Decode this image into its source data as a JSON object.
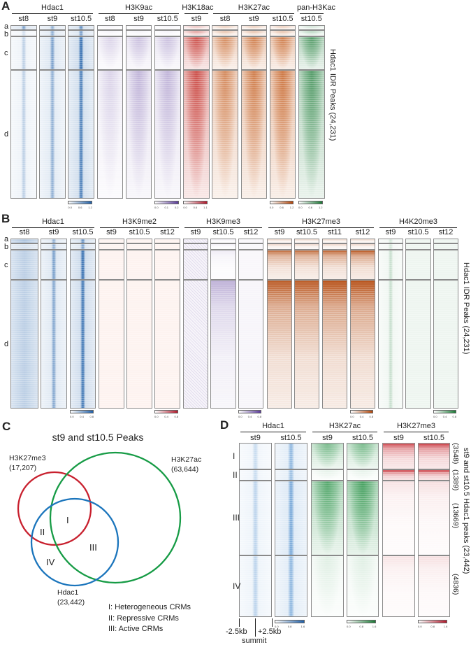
{
  "panelA": {
    "label": "A",
    "groups": [
      "Hdac1",
      "H3K9ac",
      "H3K18ac",
      "H3K27ac",
      "pan-H3Kac"
    ],
    "sections": [
      "a",
      "b",
      "c",
      "d"
    ],
    "side_label": "Hdac1 IDR Peaks (24,231)",
    "tracks": [
      {
        "group": 0,
        "stage": "st8",
        "color": "#1f5fa8",
        "signal": [
          0.6,
          0.2,
          0.3,
          0.3
        ],
        "pattern": "center"
      },
      {
        "group": 0,
        "stage": "st9",
        "color": "#1f5fa8",
        "signal": [
          0.5,
          0.5,
          0.6,
          0.5
        ],
        "pattern": "center"
      },
      {
        "group": 0,
        "stage": "st10.5",
        "color": "#1f5fa8",
        "signal": [
          0.7,
          0.6,
          0.9,
          0.8
        ],
        "pattern": "center"
      },
      {
        "group": 1,
        "stage": "st8",
        "color": "#5a3a9a",
        "signal": [
          0.05,
          0.05,
          0.2,
          0.2
        ],
        "pattern": "cone"
      },
      {
        "group": 1,
        "stage": "st9",
        "color": "#5a3a9a",
        "signal": [
          0.05,
          0.05,
          0.3,
          0.35
        ],
        "pattern": "cone"
      },
      {
        "group": 1,
        "stage": "st10.5",
        "color": "#5a3a9a",
        "signal": [
          0.05,
          0.05,
          0.3,
          0.35
        ],
        "pattern": "cone"
      },
      {
        "group": 2,
        "stage": "st9",
        "color": "#c0261f",
        "signal": [
          0.3,
          0.45,
          0.9,
          0.9
        ],
        "pattern": "cone"
      },
      {
        "group": 3,
        "stage": "st8",
        "color": "#c0520f",
        "signal": [
          0.3,
          0.35,
          0.7,
          0.7
        ],
        "pattern": "cone"
      },
      {
        "group": 3,
        "stage": "st9",
        "color": "#c0520f",
        "signal": [
          0.3,
          0.35,
          0.8,
          0.8
        ],
        "pattern": "cone"
      },
      {
        "group": 3,
        "stage": "st10.5",
        "color": "#c0520f",
        "signal": [
          0.3,
          0.35,
          0.8,
          0.85
        ],
        "pattern": "cone"
      },
      {
        "group": 4,
        "stage": "st10.5",
        "color": "#1a7a35",
        "signal": [
          0.2,
          0.3,
          0.8,
          0.8
        ],
        "pattern": "cone"
      }
    ],
    "colorbars": [
      {
        "track": 2,
        "color": "#1f5fa8",
        "ticks": [
          "0.0",
          "0.6",
          "1.2"
        ]
      },
      {
        "track": 5,
        "color": "#5a3a9a",
        "ticks": [
          "0.0",
          "0.1",
          "0.2"
        ]
      },
      {
        "track": 6,
        "color": "#b2182b",
        "ticks": [
          "0.0",
          "0.6",
          "1.1"
        ]
      },
      {
        "track": 9,
        "color": "#b2460a",
        "ticks": [
          "0.0",
          "0.6",
          "1.2"
        ]
      },
      {
        "track": 10,
        "color": "#1a7a35",
        "ticks": [
          "0.0",
          "0.6",
          "1.2"
        ]
      }
    ]
  },
  "panelB": {
    "label": "B",
    "groups": [
      "Hdac1",
      "H3K9me2",
      "H3K9me3",
      "H3K27me3",
      "H4K20me3"
    ],
    "sections": [
      "a",
      "b",
      "c",
      "d"
    ],
    "side_label": "Hdac1 IDR Peaks (24,231)",
    "tracks": [
      {
        "group": 0,
        "stage": "st8",
        "color": "#1f5fa8",
        "signal": [
          0.6,
          0.3,
          0.5,
          0.5
        ],
        "pattern": "broad"
      },
      {
        "group": 0,
        "stage": "st9",
        "color": "#1f5fa8",
        "signal": [
          0.5,
          0.5,
          0.6,
          0.55
        ],
        "pattern": "center"
      },
      {
        "group": 0,
        "stage": "st10.5",
        "color": "#1f5fa8",
        "signal": [
          0.7,
          0.6,
          0.9,
          0.85
        ],
        "pattern": "center"
      },
      {
        "group": 1,
        "stage": "st9",
        "color": "#e0603a",
        "signal": [
          0.15,
          0.15,
          0.15,
          0.15
        ],
        "pattern": "flat"
      },
      {
        "group": 1,
        "stage": "st10.5",
        "color": "#e0603a",
        "signal": [
          0.15,
          0.15,
          0.15,
          0.15
        ],
        "pattern": "flat"
      },
      {
        "group": 1,
        "stage": "st12",
        "color": "#e0603a",
        "signal": [
          0.15,
          0.15,
          0.15,
          0.15
        ],
        "pattern": "flat"
      },
      {
        "group": 2,
        "stage": "st9",
        "color": "#5a3a9a",
        "signal": [
          0.25,
          0.25,
          0.25,
          0.25
        ],
        "pattern": "noise"
      },
      {
        "group": 2,
        "stage": "st10.5",
        "color": "#5a3a9a",
        "signal": [
          0.1,
          0.1,
          0.1,
          0.4
        ],
        "pattern": "top"
      },
      {
        "group": 2,
        "stage": "st12",
        "color": "#5a3a9a",
        "signal": [
          0.08,
          0.08,
          0.08,
          0.1
        ],
        "pattern": "flat"
      },
      {
        "group": 3,
        "stage": "st9",
        "color": "#b2460a",
        "signal": [
          0.3,
          0.3,
          0.8,
          0.9
        ],
        "pattern": "top"
      },
      {
        "group": 3,
        "stage": "st10.5",
        "color": "#b2460a",
        "signal": [
          0.3,
          0.3,
          0.8,
          0.9
        ],
        "pattern": "top"
      },
      {
        "group": 3,
        "stage": "st11",
        "color": "#b2460a",
        "signal": [
          0.3,
          0.3,
          0.85,
          0.95
        ],
        "pattern": "top"
      },
      {
        "group": 3,
        "stage": "st12",
        "color": "#b2460a",
        "signal": [
          0.3,
          0.3,
          0.9,
          0.95
        ],
        "pattern": "top"
      },
      {
        "group": 4,
        "stage": "st9",
        "color": "#1a7a35",
        "signal": [
          0.2,
          0.2,
          0.25,
          0.25
        ],
        "pattern": "center"
      },
      {
        "group": 4,
        "stage": "st10.5",
        "color": "#1a7a35",
        "signal": [
          0.15,
          0.15,
          0.15,
          0.15
        ],
        "pattern": "flat"
      },
      {
        "group": 4,
        "stage": "st12",
        "color": "#1a7a35",
        "signal": [
          0.15,
          0.15,
          0.15,
          0.15
        ],
        "pattern": "flat"
      }
    ],
    "colorbars": [
      {
        "track": 2,
        "color": "#1f5fa8",
        "ticks": [
          "0.0",
          "0.4",
          "0.8"
        ]
      },
      {
        "track": 5,
        "color": "#b2182b",
        "ticks": [
          "0.0",
          "0.4",
          "0.8"
        ]
      },
      {
        "track": 8,
        "color": "#5a3a9a",
        "ticks": [
          "0.0",
          "0.4",
          "0.8"
        ]
      },
      {
        "track": 12,
        "color": "#b2460a",
        "ticks": [
          "0.0",
          "0.4",
          "0.8"
        ]
      },
      {
        "track": 15,
        "color": "#1a7a35",
        "ticks": [
          "0.0",
          "0.4",
          "0.8"
        ]
      }
    ]
  },
  "panelC": {
    "label": "C",
    "title": "st9 and st10.5 Peaks",
    "sets": [
      {
        "name": "H3K27me3",
        "count": "(17,207)",
        "color": "#c8202e"
      },
      {
        "name": "H3K27ac",
        "count": "(63,644)",
        "color": "#169b45"
      },
      {
        "name": "Hdac1",
        "count": "(23,442)",
        "color": "#1b75bc"
      }
    ],
    "regions": [
      "I",
      "II",
      "III",
      "IV"
    ],
    "legend": [
      "I: Heterogeneous CRMs",
      "II: Repressive CRMs",
      "III: Active CRMs"
    ]
  },
  "panelD": {
    "label": "D",
    "groups": [
      "Hdac1",
      "H3K27ac",
      "H3K27me3"
    ],
    "sections": [
      "I",
      "II",
      "III",
      "IV"
    ],
    "counts": [
      "(3548)",
      "(1389)",
      "(13669)",
      "(4836)"
    ],
    "side_label": "st9 and st10.5 Hdac1 peaks (23,442)",
    "tracks": [
      {
        "group": 0,
        "stage": "st9",
        "color": "#1f6fbf",
        "signal": [
          0.25,
          0.25,
          0.3,
          0.3
        ],
        "pattern": "center"
      },
      {
        "group": 0,
        "stage": "st10.5",
        "color": "#1f6fbf",
        "signal": [
          0.5,
          0.45,
          0.6,
          0.5
        ],
        "pattern": "center"
      },
      {
        "group": 1,
        "stage": "st9",
        "color": "#1a8a3a",
        "signal": [
          0.6,
          0.1,
          0.8,
          0.12
        ],
        "pattern": "cone"
      },
      {
        "group": 1,
        "stage": "st10.5",
        "color": "#1a8a3a",
        "signal": [
          0.6,
          0.1,
          0.9,
          0.12
        ],
        "pattern": "cone"
      },
      {
        "group": 2,
        "stage": "st9",
        "color": "#c0161f",
        "signal": [
          0.8,
          1.0,
          0.12,
          0.12
        ],
        "pattern": "top"
      },
      {
        "group": 2,
        "stage": "st10.5",
        "color": "#c0161f",
        "signal": [
          0.85,
          1.0,
          0.14,
          0.14
        ],
        "pattern": "top"
      }
    ],
    "colorbars": [
      {
        "track": 1,
        "color": "#1f5fa8",
        "ticks": [
          "0.0",
          "0.8",
          "1.6"
        ]
      },
      {
        "track": 3,
        "color": "#1a7a35",
        "ticks": [
          "0.0",
          "0.8",
          "1.6"
        ]
      },
      {
        "track": 5,
        "color": "#b2182b",
        "ticks": [
          "0.0",
          "0.8",
          "1.6"
        ]
      }
    ],
    "axis": {
      "left": "-2.5kb",
      "right": "+2.5kb",
      "center": "summit"
    }
  }
}
